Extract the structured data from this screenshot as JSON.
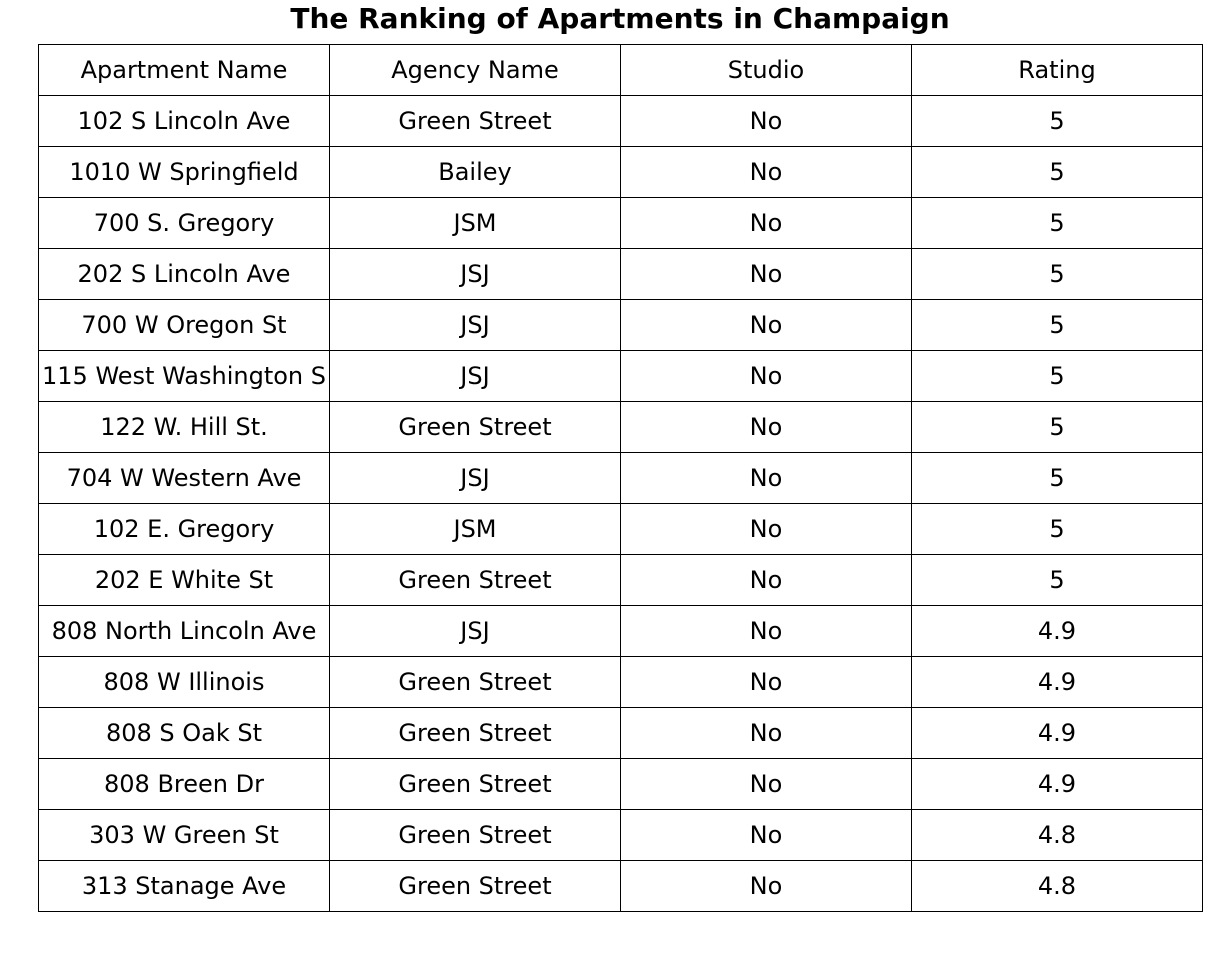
{
  "chart_data": {
    "type": "table",
    "title": "The Ranking of Apartments in Champaign",
    "columns": [
      "Apartment Name",
      "Agency Name",
      "Studio",
      "Rating"
    ],
    "rows": [
      [
        "102 S Lincoln Ave",
        "Green Street",
        "No",
        "5"
      ],
      [
        "1010 W Springfield",
        "Bailey",
        "No",
        "5"
      ],
      [
        "700 S. Gregory",
        "JSM",
        "No",
        "5"
      ],
      [
        "202 S Lincoln Ave",
        "JSJ",
        "No",
        "5"
      ],
      [
        "700 W Oregon St",
        "JSJ",
        "No",
        "5"
      ],
      [
        "115 West Washington S",
        "JSJ",
        "No",
        "5"
      ],
      [
        "122 W. Hill St.",
        "Green Street",
        "No",
        "5"
      ],
      [
        "704 W Western Ave",
        "JSJ",
        "No",
        "5"
      ],
      [
        "102 E. Gregory",
        "JSM",
        "No",
        "5"
      ],
      [
        "202 E White St",
        "Green Street",
        "No",
        "5"
      ],
      [
        "808 North Lincoln Ave",
        "JSJ",
        "No",
        "4.9"
      ],
      [
        "808 W Illinois",
        "Green Street",
        "No",
        "4.9"
      ],
      [
        "808 S Oak St",
        "Green Street",
        "No",
        "4.9"
      ],
      [
        "808 Breen Dr",
        "Green Street",
        "No",
        "4.9"
      ],
      [
        "303 W Green St",
        "Green Street",
        "No",
        "4.8"
      ],
      [
        "313 Stanage Ave",
        "Green Street",
        "No",
        "4.8"
      ]
    ]
  }
}
